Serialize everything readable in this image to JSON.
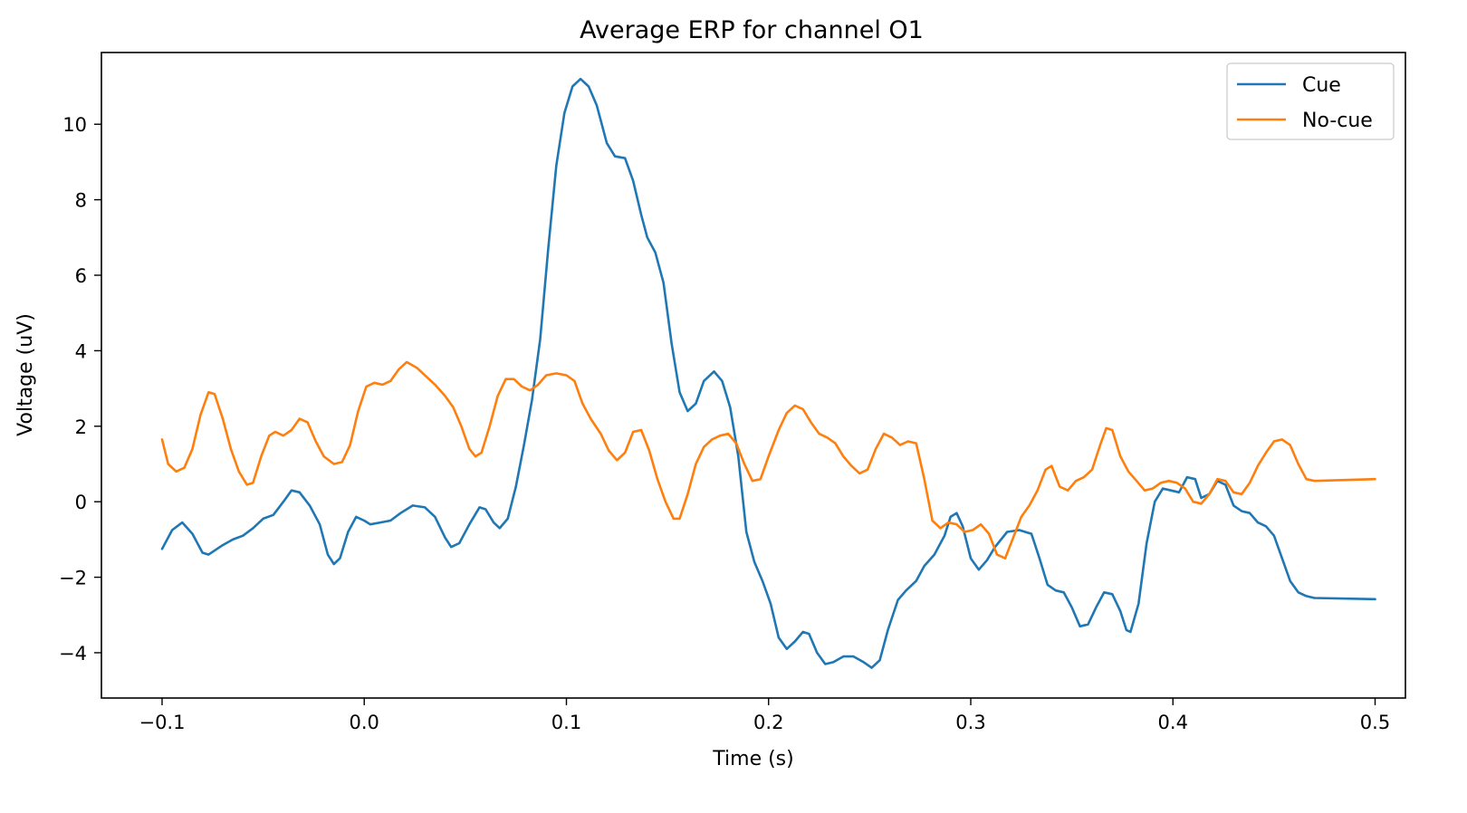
{
  "chart_data": {
    "type": "line",
    "title": "Average ERP for channel O1",
    "xlabel": "Time (s)",
    "ylabel": "Voltage (uV)",
    "xlim": [
      -0.13,
      0.515
    ],
    "ylim": [
      -5.2,
      11.9
    ],
    "xticks": [
      -0.1,
      0.0,
      0.1,
      0.2,
      0.3,
      0.4,
      0.5
    ],
    "xtick_labels": [
      "−0.1",
      "0.0",
      "0.1",
      "0.2",
      "0.3",
      "0.4",
      "0.5"
    ],
    "yticks": [
      -4,
      -2,
      0,
      2,
      4,
      6,
      8,
      10
    ],
    "ytick_labels": [
      "−4",
      "−2",
      "0",
      "2",
      "4",
      "6",
      "8",
      "10"
    ],
    "grid": false,
    "legend_position": "top-right",
    "series": [
      {
        "name": "Cue",
        "color": "#1f77b4",
        "points": [
          [
            -0.1,
            -1.25
          ],
          [
            -0.095,
            -0.75
          ],
          [
            -0.09,
            -0.55
          ],
          [
            -0.085,
            -0.85
          ],
          [
            -0.08,
            -1.35
          ],
          [
            -0.077,
            -1.4
          ],
          [
            -0.07,
            -1.15
          ],
          [
            -0.065,
            -1.0
          ],
          [
            -0.06,
            -0.9
          ],
          [
            -0.055,
            -0.7
          ],
          [
            -0.05,
            -0.45
          ],
          [
            -0.045,
            -0.35
          ],
          [
            -0.04,
            0.0
          ],
          [
            -0.036,
            0.3
          ],
          [
            -0.032,
            0.25
          ],
          [
            -0.027,
            -0.1
          ],
          [
            -0.022,
            -0.6
          ],
          [
            -0.018,
            -1.4
          ],
          [
            -0.015,
            -1.65
          ],
          [
            -0.012,
            -1.5
          ],
          [
            -0.008,
            -0.8
          ],
          [
            -0.004,
            -0.4
          ],
          [
            0.0,
            -0.5
          ],
          [
            0.003,
            -0.6
          ],
          [
            0.008,
            -0.55
          ],
          [
            0.013,
            -0.5
          ],
          [
            0.018,
            -0.3
          ],
          [
            0.024,
            -0.1
          ],
          [
            0.03,
            -0.15
          ],
          [
            0.035,
            -0.4
          ],
          [
            0.04,
            -0.95
          ],
          [
            0.043,
            -1.2
          ],
          [
            0.047,
            -1.1
          ],
          [
            0.052,
            -0.6
          ],
          [
            0.057,
            -0.15
          ],
          [
            0.06,
            -0.2
          ],
          [
            0.064,
            -0.55
          ],
          [
            0.067,
            -0.7
          ],
          [
            0.071,
            -0.45
          ],
          [
            0.075,
            0.4
          ],
          [
            0.079,
            1.5
          ],
          [
            0.083,
            2.7
          ],
          [
            0.087,
            4.3
          ],
          [
            0.091,
            6.7
          ],
          [
            0.095,
            8.9
          ],
          [
            0.099,
            10.3
          ],
          [
            0.103,
            11.0
          ],
          [
            0.107,
            11.2
          ],
          [
            0.111,
            11.0
          ],
          [
            0.115,
            10.5
          ],
          [
            0.12,
            9.5
          ],
          [
            0.124,
            9.15
          ],
          [
            0.129,
            9.1
          ],
          [
            0.133,
            8.5
          ],
          [
            0.137,
            7.6
          ],
          [
            0.14,
            7.0
          ],
          [
            0.144,
            6.6
          ],
          [
            0.148,
            5.8
          ],
          [
            0.152,
            4.2
          ],
          [
            0.156,
            2.9
          ],
          [
            0.16,
            2.4
          ],
          [
            0.164,
            2.6
          ],
          [
            0.168,
            3.2
          ],
          [
            0.173,
            3.45
          ],
          [
            0.177,
            3.2
          ],
          [
            0.181,
            2.5
          ],
          [
            0.185,
            1.2
          ],
          [
            0.189,
            -0.8
          ],
          [
            0.193,
            -1.6
          ],
          [
            0.197,
            -2.1
          ],
          [
            0.201,
            -2.7
          ],
          [
            0.205,
            -3.6
          ],
          [
            0.209,
            -3.9
          ],
          [
            0.213,
            -3.7
          ],
          [
            0.217,
            -3.45
          ],
          [
            0.22,
            -3.5
          ],
          [
            0.224,
            -4.0
          ],
          [
            0.228,
            -4.3
          ],
          [
            0.232,
            -4.25
          ],
          [
            0.237,
            -4.1
          ],
          [
            0.242,
            -4.1
          ],
          [
            0.247,
            -4.25
          ],
          [
            0.251,
            -4.4
          ],
          [
            0.255,
            -4.2
          ],
          [
            0.259,
            -3.4
          ],
          [
            0.264,
            -2.6
          ],
          [
            0.268,
            -2.35
          ],
          [
            0.273,
            -2.1
          ],
          [
            0.277,
            -1.7
          ],
          [
            0.282,
            -1.4
          ],
          [
            0.287,
            -0.9
          ],
          [
            0.29,
            -0.4
          ],
          [
            0.293,
            -0.3
          ],
          [
            0.296,
            -0.65
          ],
          [
            0.3,
            -1.5
          ],
          [
            0.304,
            -1.8
          ],
          [
            0.308,
            -1.55
          ],
          [
            0.312,
            -1.2
          ],
          [
            0.318,
            -0.8
          ],
          [
            0.324,
            -0.75
          ],
          [
            0.33,
            -0.85
          ],
          [
            0.334,
            -1.5
          ],
          [
            0.338,
            -2.2
          ],
          [
            0.342,
            -2.35
          ],
          [
            0.346,
            -2.4
          ],
          [
            0.35,
            -2.8
          ],
          [
            0.354,
            -3.3
          ],
          [
            0.358,
            -3.25
          ],
          [
            0.362,
            -2.8
          ],
          [
            0.366,
            -2.4
          ],
          [
            0.37,
            -2.45
          ],
          [
            0.374,
            -2.9
          ],
          [
            0.377,
            -3.4
          ],
          [
            0.379,
            -3.45
          ],
          [
            0.383,
            -2.7
          ],
          [
            0.387,
            -1.1
          ],
          [
            0.391,
            0.0
          ],
          [
            0.395,
            0.35
          ],
          [
            0.399,
            0.3
          ],
          [
            0.403,
            0.25
          ],
          [
            0.407,
            0.65
          ],
          [
            0.411,
            0.6
          ],
          [
            0.414,
            0.1
          ],
          [
            0.418,
            0.2
          ],
          [
            0.422,
            0.55
          ],
          [
            0.426,
            0.45
          ],
          [
            0.43,
            -0.1
          ],
          [
            0.434,
            -0.25
          ],
          [
            0.438,
            -0.3
          ],
          [
            0.442,
            -0.55
          ],
          [
            0.446,
            -0.65
          ],
          [
            0.45,
            -0.9
          ],
          [
            0.454,
            -1.5
          ],
          [
            0.458,
            -2.1
          ],
          [
            0.462,
            -2.4
          ],
          [
            0.466,
            -2.5
          ],
          [
            0.47,
            -2.55
          ],
          [
            0.5,
            -2.58
          ]
        ]
      },
      {
        "name": "No-cue",
        "color": "#ff7f0e",
        "points": [
          [
            -0.1,
            1.65
          ],
          [
            -0.097,
            1.0
          ],
          [
            -0.093,
            0.8
          ],
          [
            -0.089,
            0.9
          ],
          [
            -0.085,
            1.4
          ],
          [
            -0.081,
            2.3
          ],
          [
            -0.077,
            2.9
          ],
          [
            -0.074,
            2.85
          ],
          [
            -0.07,
            2.2
          ],
          [
            -0.066,
            1.4
          ],
          [
            -0.062,
            0.8
          ],
          [
            -0.058,
            0.45
          ],
          [
            -0.055,
            0.5
          ],
          [
            -0.051,
            1.2
          ],
          [
            -0.047,
            1.75
          ],
          [
            -0.044,
            1.85
          ],
          [
            -0.04,
            1.75
          ],
          [
            -0.036,
            1.9
          ],
          [
            -0.032,
            2.2
          ],
          [
            -0.028,
            2.1
          ],
          [
            -0.024,
            1.6
          ],
          [
            -0.02,
            1.2
          ],
          [
            -0.015,
            1.0
          ],
          [
            -0.011,
            1.05
          ],
          [
            -0.007,
            1.5
          ],
          [
            -0.003,
            2.4
          ],
          [
            0.001,
            3.05
          ],
          [
            0.005,
            3.15
          ],
          [
            0.009,
            3.1
          ],
          [
            0.013,
            3.2
          ],
          [
            0.017,
            3.5
          ],
          [
            0.021,
            3.7
          ],
          [
            0.026,
            3.55
          ],
          [
            0.031,
            3.3
          ],
          [
            0.035,
            3.1
          ],
          [
            0.04,
            2.8
          ],
          [
            0.044,
            2.5
          ],
          [
            0.048,
            2.0
          ],
          [
            0.052,
            1.4
          ],
          [
            0.055,
            1.2
          ],
          [
            0.058,
            1.3
          ],
          [
            0.062,
            2.0
          ],
          [
            0.066,
            2.8
          ],
          [
            0.07,
            3.25
          ],
          [
            0.074,
            3.25
          ],
          [
            0.078,
            3.05
          ],
          [
            0.082,
            2.95
          ],
          [
            0.086,
            3.1
          ],
          [
            0.09,
            3.35
          ],
          [
            0.095,
            3.4
          ],
          [
            0.1,
            3.35
          ],
          [
            0.104,
            3.2
          ],
          [
            0.108,
            2.6
          ],
          [
            0.112,
            2.2
          ],
          [
            0.117,
            1.8
          ],
          [
            0.121,
            1.35
          ],
          [
            0.125,
            1.1
          ],
          [
            0.129,
            1.3
          ],
          [
            0.133,
            1.85
          ],
          [
            0.137,
            1.9
          ],
          [
            0.141,
            1.35
          ],
          [
            0.145,
            0.6
          ],
          [
            0.149,
            0.0
          ],
          [
            0.153,
            -0.45
          ],
          [
            0.156,
            -0.45
          ],
          [
            0.16,
            0.2
          ],
          [
            0.164,
            1.0
          ],
          [
            0.168,
            1.45
          ],
          [
            0.172,
            1.65
          ],
          [
            0.176,
            1.75
          ],
          [
            0.18,
            1.8
          ],
          [
            0.184,
            1.55
          ],
          [
            0.188,
            1.0
          ],
          [
            0.192,
            0.55
          ],
          [
            0.196,
            0.6
          ],
          [
            0.2,
            1.2
          ],
          [
            0.205,
            1.9
          ],
          [
            0.209,
            2.35
          ],
          [
            0.213,
            2.55
          ],
          [
            0.217,
            2.45
          ],
          [
            0.221,
            2.1
          ],
          [
            0.225,
            1.8
          ],
          [
            0.229,
            1.7
          ],
          [
            0.233,
            1.55
          ],
          [
            0.237,
            1.2
          ],
          [
            0.241,
            0.95
          ],
          [
            0.245,
            0.75
          ],
          [
            0.249,
            0.85
          ],
          [
            0.253,
            1.4
          ],
          [
            0.257,
            1.8
          ],
          [
            0.261,
            1.7
          ],
          [
            0.265,
            1.5
          ],
          [
            0.269,
            1.6
          ],
          [
            0.273,
            1.55
          ],
          [
            0.277,
            0.6
          ],
          [
            0.281,
            -0.5
          ],
          [
            0.285,
            -0.7
          ],
          [
            0.289,
            -0.55
          ],
          [
            0.293,
            -0.6
          ],
          [
            0.297,
            -0.8
          ],
          [
            0.301,
            -0.75
          ],
          [
            0.305,
            -0.6
          ],
          [
            0.309,
            -0.85
          ],
          [
            0.313,
            -1.4
          ],
          [
            0.317,
            -1.5
          ],
          [
            0.321,
            -0.95
          ],
          [
            0.325,
            -0.4
          ],
          [
            0.329,
            -0.1
          ],
          [
            0.333,
            0.3
          ],
          [
            0.337,
            0.85
          ],
          [
            0.34,
            0.95
          ],
          [
            0.344,
            0.4
          ],
          [
            0.348,
            0.3
          ],
          [
            0.352,
            0.55
          ],
          [
            0.356,
            0.65
          ],
          [
            0.36,
            0.85
          ],
          [
            0.364,
            1.5
          ],
          [
            0.367,
            1.95
          ],
          [
            0.37,
            1.9
          ],
          [
            0.374,
            1.2
          ],
          [
            0.378,
            0.8
          ],
          [
            0.382,
            0.55
          ],
          [
            0.386,
            0.3
          ],
          [
            0.39,
            0.35
          ],
          [
            0.394,
            0.5
          ],
          [
            0.398,
            0.55
          ],
          [
            0.402,
            0.5
          ],
          [
            0.406,
            0.35
          ],
          [
            0.41,
            0.0
          ],
          [
            0.414,
            -0.05
          ],
          [
            0.418,
            0.2
          ],
          [
            0.422,
            0.6
          ],
          [
            0.426,
            0.55
          ],
          [
            0.43,
            0.25
          ],
          [
            0.434,
            0.2
          ],
          [
            0.438,
            0.5
          ],
          [
            0.442,
            0.95
          ],
          [
            0.446,
            1.3
          ],
          [
            0.45,
            1.6
          ],
          [
            0.454,
            1.65
          ],
          [
            0.458,
            1.5
          ],
          [
            0.462,
            1.0
          ],
          [
            0.466,
            0.6
          ],
          [
            0.47,
            0.55
          ],
          [
            0.5,
            0.6
          ]
        ]
      }
    ]
  }
}
